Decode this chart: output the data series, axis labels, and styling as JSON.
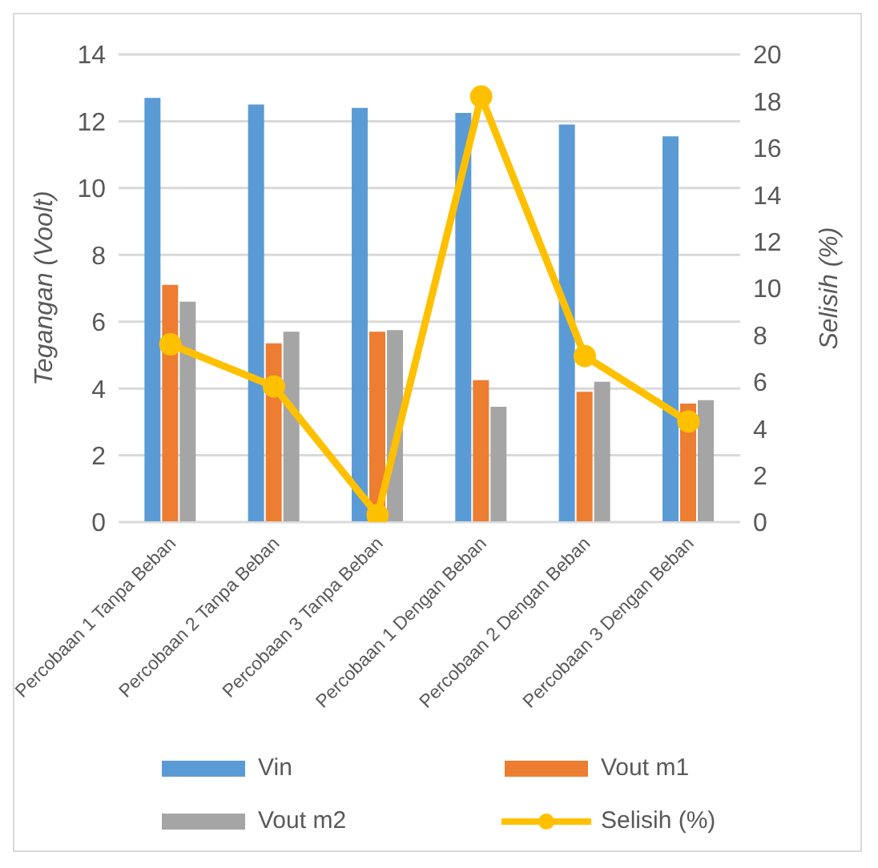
{
  "chart_data": {
    "type": "bar",
    "categories": [
      "Percobaan 1 Tanpa Beban",
      "Percobaan 2 Tanpa Beban",
      "Percobaan 3 Tanpa Beban",
      "Percobaan 1 Dengan Beban",
      "Percobaan 2 Dengan Beban",
      "Percobaan 3 Dengan Beban"
    ],
    "ylabel": "Tegangan (Voolt)",
    "y2label": "Selisih (%)",
    "series": [
      {
        "name": "Vin",
        "color": "#5b9bd5",
        "values": [
          12.7,
          12.5,
          12.4,
          12.25,
          11.9,
          11.55
        ]
      },
      {
        "name": "Vout m1",
        "color": "#ed7d31",
        "values": [
          7.1,
          5.35,
          5.7,
          4.25,
          3.9,
          3.55
        ]
      },
      {
        "name": "Vout m2",
        "color": "#a5a5a5",
        "values": [
          6.6,
          5.7,
          5.75,
          3.45,
          4.2,
          3.65
        ]
      },
      {
        "name": "Selisih (%)",
        "type": "line",
        "axis": "y2",
        "color": "#ffc000",
        "values": [
          7.6,
          5.8,
          0.3,
          18.2,
          7.1,
          4.3
        ]
      }
    ],
    "ylim": [
      0,
      14
    ],
    "yticks": [
      0,
      2,
      4,
      6,
      8,
      10,
      12,
      14
    ],
    "y2lim": [
      0,
      20
    ],
    "y2ticks": [
      0,
      2,
      4,
      6,
      8,
      10,
      12,
      14,
      16,
      18,
      20
    ],
    "grid": "y",
    "legend": "bottom",
    "marker": "circle"
  }
}
